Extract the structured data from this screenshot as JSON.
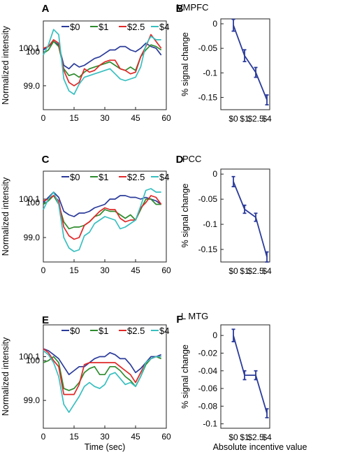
{
  "figure": {
    "colors": {
      "zero": "#2B3B9A",
      "one": "#2E8B2E",
      "two_five": "#E02828",
      "four": "#38BFC0",
      "bar_series": "#2B3B9A",
      "axis": "#222222"
    }
  },
  "chart_data": [
    {
      "panel": "A",
      "type": "line",
      "region_label": "VMPFC",
      "xlabel": "",
      "ylabel": "Normalized intensity",
      "xlim": [
        0,
        60
      ],
      "ylim": [
        98.3,
        100.9
      ],
      "xticks": [
        0,
        15,
        30,
        45,
        60
      ],
      "ytick_values": [
        99.0,
        100.0,
        100.1
      ],
      "ytick_labels": [
        "99.0",
        "100",
        "100.1"
      ],
      "legend": [
        "$0",
        "$1",
        "$2.5",
        "$4"
      ],
      "x": [
        0,
        2.5,
        5,
        7.5,
        10,
        12.5,
        15,
        17.5,
        20,
        22.5,
        25,
        27.5,
        30,
        32.5,
        35,
        37.5,
        40,
        42.5,
        45,
        47.5,
        50,
        52.5,
        55,
        57.5
      ],
      "series": [
        {
          "name": "$0",
          "color_key": "zero",
          "values": [
            100.05,
            100.15,
            100.3,
            100.2,
            99.6,
            99.5,
            99.65,
            99.55,
            99.6,
            99.7,
            99.8,
            99.85,
            99.95,
            100.05,
            100.05,
            100.15,
            100.15,
            100.05,
            100.0,
            100.1,
            100.25,
            100.15,
            100.1,
            99.9
          ]
        },
        {
          "name": "$1",
          "color_key": "one",
          "values": [
            99.95,
            100.05,
            100.3,
            100.15,
            99.5,
            99.3,
            99.35,
            99.25,
            99.4,
            99.5,
            99.55,
            99.6,
            99.65,
            99.7,
            99.6,
            99.5,
            99.45,
            99.55,
            99.45,
            99.85,
            100.05,
            100.2,
            100.15,
            100.05
          ]
        },
        {
          "name": "$2.5",
          "color_key": "two_five",
          "values": [
            100.1,
            100.15,
            100.35,
            100.25,
            99.45,
            99.1,
            99.0,
            99.1,
            99.5,
            99.4,
            99.45,
            99.6,
            99.7,
            99.75,
            99.75,
            99.5,
            99.45,
            99.35,
            99.4,
            99.85,
            100.15,
            100.5,
            100.3,
            100.1
          ]
        },
        {
          "name": "$4",
          "color_key": "four",
          "values": [
            99.9,
            100.2,
            100.65,
            100.5,
            99.2,
            98.85,
            98.75,
            99.05,
            99.25,
            99.3,
            99.35,
            99.4,
            99.45,
            99.5,
            99.35,
            99.2,
            99.15,
            99.2,
            99.25,
            99.55,
            100.2,
            100.45,
            100.35,
            100.35
          ]
        }
      ]
    },
    {
      "panel": "B",
      "type": "line",
      "region_label": "",
      "xlabel": "",
      "ylabel": "% signal change",
      "categories": [
        "$0",
        "$1",
        "$2.5",
        "$4"
      ],
      "ylim": [
        -0.175,
        0.01
      ],
      "ytick_values": [
        0,
        -0.05,
        -0.1,
        -0.15
      ],
      "ytick_labels": [
        "0",
        "-0.05",
        "-0.1",
        "-0.15"
      ],
      "series": [
        {
          "color_key": "bar_series",
          "values": [
            -0.003,
            -0.065,
            -0.099,
            -0.155
          ],
          "errors": [
            0.012,
            0.012,
            0.01,
            0.01
          ]
        }
      ]
    },
    {
      "panel": "C",
      "type": "line",
      "region_label": "PCC",
      "xlabel": "",
      "ylabel": "Normalized intensity",
      "xlim": [
        0,
        60
      ],
      "ylim": [
        98.3,
        100.9
      ],
      "xticks": [
        0,
        15,
        30,
        45,
        60
      ],
      "ytick_values": [
        99.0,
        100.0,
        100.1
      ],
      "ytick_labels": [
        "99.0",
        "100",
        "100.1"
      ],
      "legend": [
        "$0",
        "$1",
        "$2.5",
        "$4"
      ],
      "x": [
        0,
        2.5,
        5,
        7.5,
        10,
        12.5,
        15,
        17.5,
        20,
        22.5,
        25,
        27.5,
        30,
        32.5,
        35,
        37.5,
        40,
        42.5,
        45,
        47.5,
        50,
        52.5,
        55,
        57.5
      ],
      "series": [
        {
          "name": "$0",
          "color_key": "zero",
          "values": [
            100.0,
            100.15,
            100.3,
            100.15,
            99.75,
            99.65,
            99.6,
            99.7,
            99.7,
            99.75,
            99.85,
            99.9,
            99.95,
            100.1,
            100.1,
            100.2,
            100.2,
            100.15,
            100.15,
            100.1,
            100.15,
            100.1,
            100.05,
            99.95
          ]
        },
        {
          "name": "$1",
          "color_key": "one",
          "values": [
            99.95,
            100.05,
            100.2,
            99.95,
            99.45,
            99.25,
            99.3,
            99.3,
            99.35,
            99.45,
            99.6,
            99.65,
            99.8,
            99.75,
            99.75,
            99.65,
            99.55,
            99.65,
            99.5,
            99.8,
            100.1,
            100.1,
            99.95,
            99.95
          ]
        },
        {
          "name": "$2.5",
          "color_key": "two_five",
          "values": [
            100.05,
            100.1,
            100.2,
            100.05,
            99.3,
            99.05,
            98.95,
            99.0,
            99.35,
            99.45,
            99.6,
            99.75,
            99.85,
            99.8,
            99.8,
            99.55,
            99.45,
            99.5,
            99.5,
            99.85,
            100.0,
            100.2,
            100.15,
            99.95
          ]
        },
        {
          "name": "$4",
          "color_key": "four",
          "values": [
            99.8,
            100.1,
            100.3,
            99.95,
            99.0,
            98.7,
            98.6,
            98.65,
            99.05,
            99.15,
            99.4,
            99.5,
            99.6,
            99.55,
            99.5,
            99.25,
            99.3,
            99.4,
            99.5,
            99.9,
            100.35,
            100.4,
            100.3,
            100.3
          ]
        }
      ]
    },
    {
      "panel": "D",
      "type": "line",
      "region_label": "",
      "xlabel": "",
      "ylabel": "% signal change",
      "categories": [
        "$0",
        "$1",
        "$2.5",
        "$4"
      ],
      "ylim": [
        -0.175,
        0.01
      ],
      "ytick_values": [
        0,
        -0.05,
        -0.1,
        -0.15
      ],
      "ytick_labels": [
        "0",
        "-0.05",
        "-0.1",
        "-0.15"
      ],
      "series": [
        {
          "color_key": "bar_series",
          "values": [
            -0.015,
            -0.07,
            -0.086,
            -0.165
          ],
          "errors": [
            0.01,
            0.008,
            0.008,
            0.01
          ]
        }
      ]
    },
    {
      "panel": "E",
      "type": "line",
      "region_label": "L MTG",
      "xlabel": "Time (sec)",
      "ylabel": "Normalized intensity",
      "xlim": [
        0,
        60
      ],
      "ylim": [
        98.3,
        100.9
      ],
      "xticks": [
        0,
        15,
        30,
        45,
        60
      ],
      "ytick_values": [
        99.0,
        100.0,
        100.1
      ],
      "ytick_labels": [
        "99.0",
        "100",
        "100.1"
      ],
      "legend": [
        "$0",
        "$1",
        "$2.5",
        "$4"
      ],
      "x": [
        0,
        2.5,
        5,
        7.5,
        10,
        12.5,
        15,
        17.5,
        20,
        22.5,
        25,
        27.5,
        30,
        32.5,
        35,
        37.5,
        40,
        42.5,
        45,
        47.5,
        50,
        52.5,
        55,
        57.5
      ],
      "series": [
        {
          "name": "$0",
          "color_key": "zero",
          "values": [
            100.3,
            100.25,
            100.15,
            100.05,
            99.85,
            99.65,
            99.75,
            99.85,
            99.85,
            99.95,
            100.05,
            100.1,
            100.1,
            100.2,
            100.15,
            100.05,
            100.05,
            99.9,
            99.7,
            99.8,
            99.95,
            100.1,
            100.1,
            100.15
          ]
        },
        {
          "name": "$1",
          "color_key": "one",
          "values": [
            99.95,
            100.0,
            100.1,
            99.95,
            99.3,
            99.25,
            99.3,
            99.45,
            99.7,
            99.8,
            99.85,
            99.65,
            99.65,
            99.85,
            99.85,
            99.75,
            99.6,
            99.5,
            99.35,
            99.6,
            99.9,
            100.05,
            100.1,
            100.05
          ]
        },
        {
          "name": "$2.5",
          "color_key": "two_five",
          "values": [
            100.3,
            100.2,
            100.0,
            99.85,
            99.15,
            99.15,
            99.15,
            99.4,
            99.9,
            99.95,
            99.95,
            99.95,
            99.95,
            99.95,
            99.95,
            99.85,
            99.75,
            99.65,
            99.45,
            99.7,
            99.95,
            100.05,
            100.1,
            100.1
          ]
        },
        {
          "name": "$4",
          "color_key": "four",
          "values": [
            100.25,
            100.15,
            99.95,
            99.6,
            98.9,
            98.7,
            98.9,
            99.1,
            99.35,
            99.45,
            99.35,
            99.3,
            99.4,
            99.65,
            99.7,
            99.55,
            99.4,
            99.45,
            99.35,
            99.6,
            99.95,
            100.05,
            100.1,
            100.1
          ]
        }
      ]
    },
    {
      "panel": "F",
      "type": "line",
      "region_label": "",
      "xlabel": "Absolute incentive value",
      "ylabel": "% signal change",
      "categories": [
        "$0",
        "$1",
        "$2.5",
        "$4"
      ],
      "ylim": [
        -0.105,
        0.012
      ],
      "ytick_values": [
        0,
        -0.02,
        -0.04,
        -0.06,
        -0.08,
        -0.1
      ],
      "ytick_labels": [
        "0",
        "-0.02",
        "-0.04",
        "-0.06",
        "-0.08",
        "-0.1"
      ],
      "series": [
        {
          "color_key": "bar_series",
          "values": [
            0,
            -0.045,
            -0.045,
            -0.088
          ],
          "errors": [
            0.007,
            0.005,
            0.005,
            0.005
          ]
        }
      ]
    }
  ]
}
